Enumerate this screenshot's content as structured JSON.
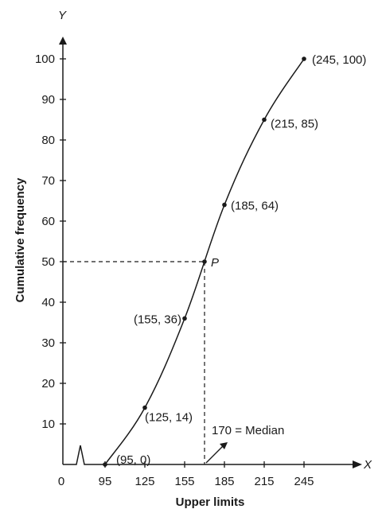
{
  "chart_data": {
    "type": "line",
    "title": "",
    "xlabel": "Upper limits",
    "ylabel": "Cumulative frequency",
    "x_axis_letter": "X",
    "y_axis_letter": "Y",
    "origin_label": "0",
    "x_ticks": [
      95,
      125,
      155,
      185,
      215,
      245
    ],
    "x_tick_labels": [
      "95",
      "125",
      "155",
      "185",
      "215",
      "245"
    ],
    "y_ticks": [
      10,
      20,
      30,
      40,
      50,
      60,
      70,
      80,
      90,
      100
    ],
    "y_tick_labels": [
      "10",
      "20",
      "30",
      "40",
      "50",
      "60",
      "70",
      "80",
      "90",
      "100"
    ],
    "xlim": [
      95,
      245
    ],
    "ylim": [
      0,
      100
    ],
    "grid": false,
    "axis_break": true,
    "series": [
      {
        "x": [
          95,
          125,
          155,
          185,
          215,
          245
        ],
        "y": [
          0,
          14,
          36,
          64,
          85,
          100
        ],
        "point_labels": [
          "(95, 0)",
          "(125, 14)",
          "(155, 36)",
          "(185, 64)",
          "(215, 85)",
          "(245, 100)"
        ]
      }
    ],
    "median_point": {
      "x": 170,
      "y": 50,
      "label": "P"
    },
    "median_annotation": "170 = Median",
    "line_color": "#1a1a1a"
  }
}
